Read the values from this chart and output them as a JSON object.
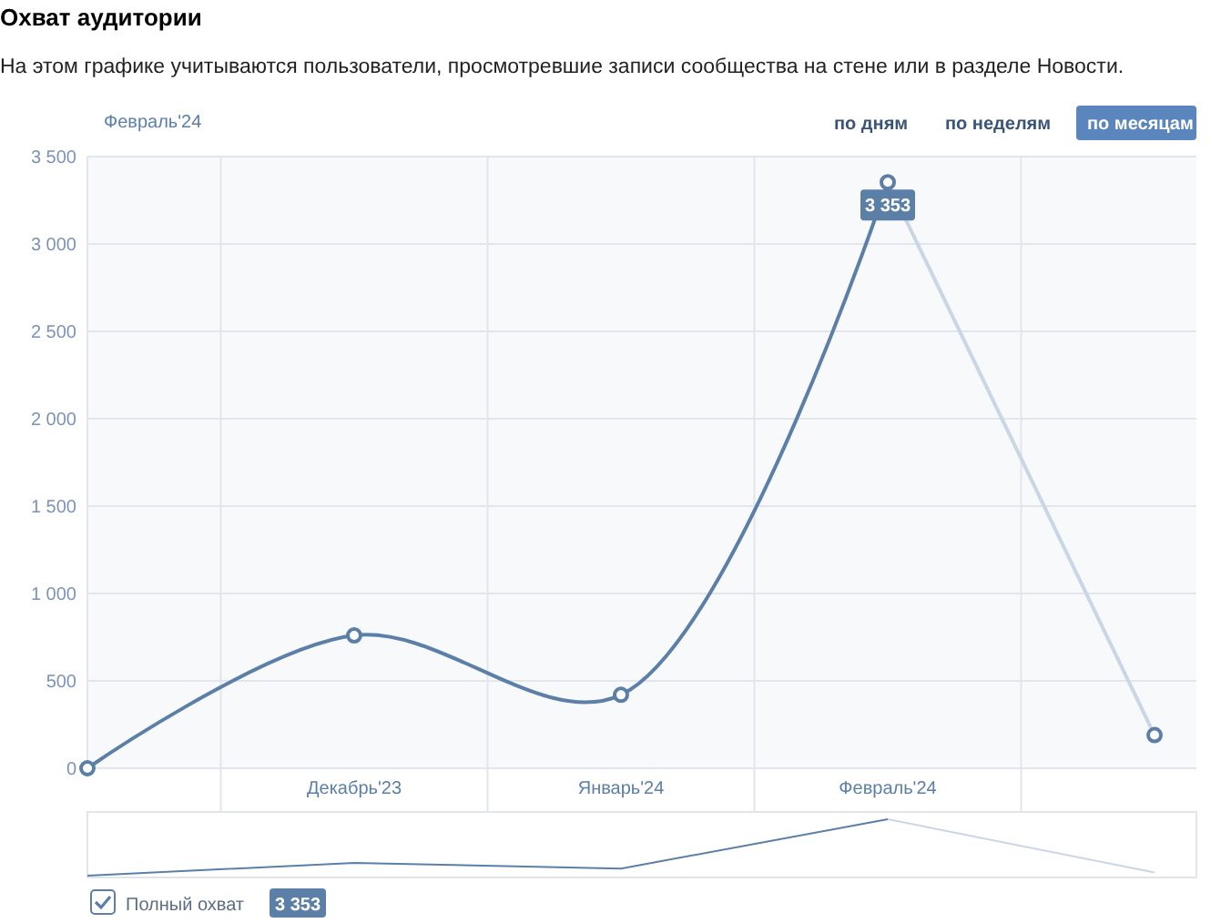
{
  "chart_data": {
    "type": "line",
    "title": "Охват аудитории",
    "subtitle": "На этом графике учитываются пользователи, просмотревшие записи сообщества на стене или в разделе Новости.",
    "categories": [
      null,
      "Декабрь'23",
      "Январь'24",
      "Февраль'24",
      null
    ],
    "series": [
      {
        "name": "Полный охват",
        "color": "#5b7fa6",
        "values": [
          0,
          760,
          420,
          3353,
          null
        ]
      },
      {
        "color": "#c9d6e5",
        "values": [
          null,
          null,
          null,
          3353,
          190
        ]
      }
    ],
    "ylim": [
      0,
      3500
    ],
    "yticks": [
      0,
      500,
      {
        "value": 1000,
        "label": "1 000"
      },
      {
        "value": 1500,
        "label": "1 500"
      },
      {
        "value": 2000,
        "label": "2 000"
      },
      {
        "value": 2500,
        "label": "2 500"
      },
      {
        "value": 3000,
        "label": "3 000"
      },
      {
        "value": 3500,
        "label": "3 500"
      }
    ],
    "grid": true,
    "marker": "circle",
    "legend": "bottom left",
    "annotations": [
      {
        "text": "3 353",
        "x": "Февраль'24",
        "y": 3353
      },
      "Февраль'24",
      "по дням",
      "по неделям",
      "по месяцам",
      "3 353"
    ]
  }
}
